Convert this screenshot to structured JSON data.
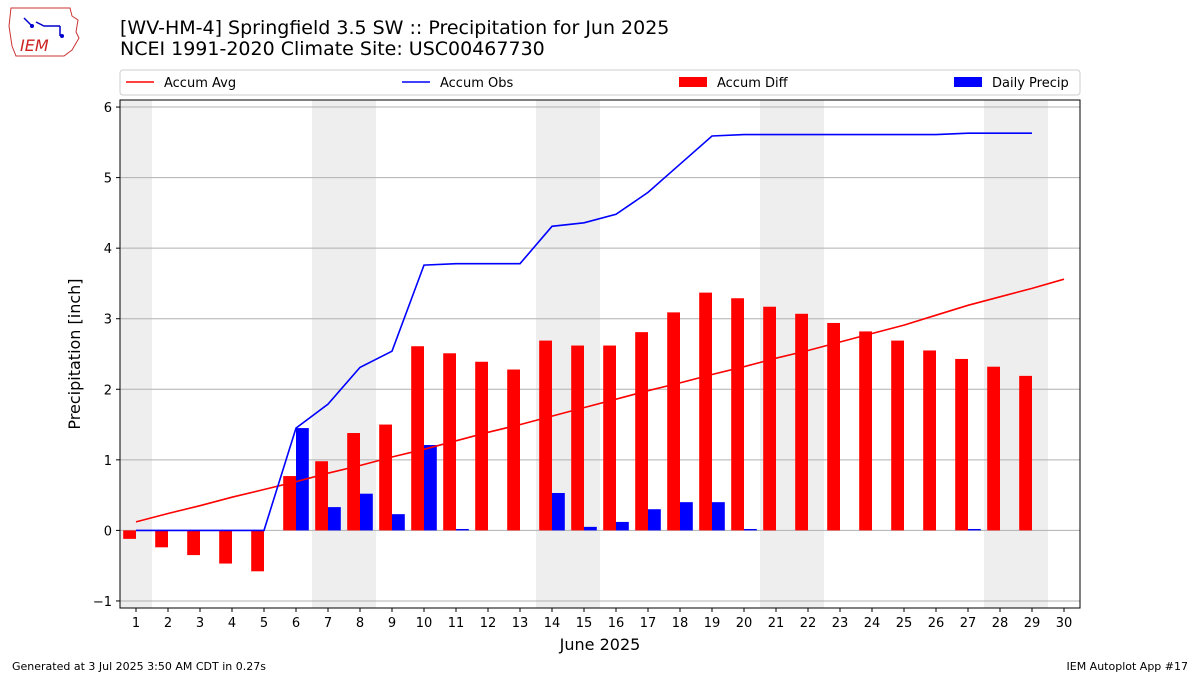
{
  "header": {
    "title_line1": "[WV-HM-4] Springfield 3.5 SW :: Precipitation for Jun 2025",
    "title_line2": "NCEI 1991-2020 Climate Site: USC00467730"
  },
  "logo": {
    "text": "IEM"
  },
  "footer": {
    "generated": "Generated at 3 Jul 2025 3:50 AM CDT in 0.27s",
    "app": "IEM Autoplot App #17"
  },
  "colors": {
    "avg": "#ff0000",
    "obs": "#0000ff",
    "diff": "#ff0000",
    "daily": "#0000ff",
    "weekend": "#eeeeee",
    "grid": "#b0b0b0"
  },
  "chart_data": {
    "type": "bar",
    "title": "[WV-HM-4] Springfield 3.5 SW :: Precipitation for Jun 2025",
    "xlabel": "June 2025",
    "ylabel": "Precipitation [inch]",
    "xlim": [
      0.5,
      30.5
    ],
    "ylim": [
      -1.1,
      6.1
    ],
    "yticks": [
      -1,
      0,
      1,
      2,
      3,
      4,
      5,
      6
    ],
    "grid": "horizontal",
    "legend_position": "top",
    "weekend_days": [
      1,
      7,
      8,
      14,
      15,
      21,
      22,
      28,
      29
    ],
    "categories": [
      "1",
      "2",
      "3",
      "4",
      "5",
      "6",
      "7",
      "8",
      "9",
      "10",
      "11",
      "12",
      "13",
      "14",
      "15",
      "16",
      "17",
      "18",
      "19",
      "20",
      "21",
      "22",
      "23",
      "24",
      "25",
      "26",
      "27",
      "28",
      "29",
      "30"
    ],
    "series": [
      {
        "name": "Accum Avg",
        "type": "line",
        "values": [
          0.12,
          0.24,
          0.35,
          0.47,
          0.58,
          0.69,
          0.81,
          0.92,
          1.04,
          1.15,
          1.27,
          1.39,
          1.5,
          1.62,
          1.74,
          1.86,
          1.98,
          2.09,
          2.21,
          2.32,
          2.44,
          2.55,
          2.67,
          2.79,
          2.91,
          3.05,
          3.19,
          3.31,
          3.43,
          3.56
        ]
      },
      {
        "name": "Accum Obs",
        "type": "line",
        "values": [
          0,
          0,
          0,
          0,
          0,
          1.45,
          1.79,
          2.31,
          2.54,
          3.76,
          3.78,
          3.78,
          3.78,
          4.31,
          4.36,
          4.48,
          4.79,
          5.19,
          5.59,
          5.61,
          5.61,
          5.61,
          5.61,
          5.61,
          5.61,
          5.61,
          5.63,
          5.63,
          5.63,
          null
        ]
      },
      {
        "name": "Accum Diff",
        "type": "bar",
        "values": [
          -0.12,
          -0.24,
          -0.35,
          -0.47,
          -0.58,
          0.77,
          0.98,
          1.38,
          1.5,
          2.61,
          2.51,
          2.39,
          2.28,
          2.69,
          2.62,
          2.62,
          2.81,
          3.09,
          3.37,
          3.29,
          3.17,
          3.07,
          2.94,
          2.82,
          2.69,
          2.55,
          2.43,
          2.32,
          2.19,
          null
        ]
      },
      {
        "name": "Daily Precip",
        "type": "bar",
        "values": [
          0,
          0,
          0,
          0,
          0,
          1.45,
          0.33,
          0.52,
          0.23,
          1.21,
          0.02,
          0,
          0,
          0.53,
          0.05,
          0.12,
          0.3,
          0.4,
          0.4,
          0.02,
          0,
          0,
          0,
          0,
          0,
          0,
          0.02,
          0,
          0,
          null
        ]
      }
    ]
  }
}
